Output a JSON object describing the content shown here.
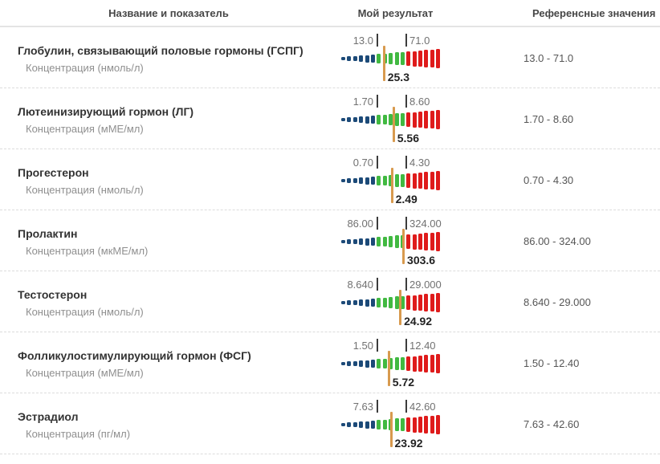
{
  "header": {
    "col_name": "Название и показатель",
    "col_result": "Мой результат",
    "col_reference": "Референсные значения"
  },
  "bar": {
    "segment_count_below": 6,
    "segment_count_normal": 5,
    "segment_count_above": 6,
    "color_below": "#1c4a78",
    "color_normal": "#41b941",
    "color_above": "#df1b1b",
    "color_marker": "#d89a4e"
  },
  "rows": [
    {
      "name": "Глобулин, связывающий половые гормоны (ГСПГ)",
      "indicator": "Концентрация (нмоль/л)",
      "min": "13.0",
      "max": "71.0",
      "result": "25.3",
      "reference": "13.0 - 71.0"
    },
    {
      "name": "Лютеинизирующий гормон (ЛГ)",
      "indicator": "Концентрация (мМЕ/мл)",
      "min": "1.70",
      "max": "8.60",
      "result": "5.56",
      "reference": "1.70 - 8.60"
    },
    {
      "name": "Прогестерон",
      "indicator": "Концентрация (нмоль/л)",
      "min": "0.70",
      "max": "4.30",
      "result": "2.49",
      "reference": "0.70 - 4.30"
    },
    {
      "name": "Пролактин",
      "indicator": "Концентрация (мкМЕ/мл)",
      "min": "86.00",
      "max": "324.00",
      "result": "303.6",
      "reference": "86.00 - 324.00"
    },
    {
      "name": "Тестостерон",
      "indicator": "Концентрация (нмоль/л)",
      "min": "8.640",
      "max": "29.000",
      "result": "24.92",
      "reference": "8.640 - 29.000"
    },
    {
      "name": "Фолликулостимулирующий гормон (ФСГ)",
      "indicator": "Концентрация (мМЕ/мл)",
      "min": "1.50",
      "max": "12.40",
      "result": "5.72",
      "reference": "1.50 - 12.40"
    },
    {
      "name": "Эстрадиол",
      "indicator": "Концентрация (пг/мл)",
      "min": "7.63",
      "max": "42.60",
      "result": "23.92",
      "reference": "7.63 - 42.60"
    }
  ]
}
